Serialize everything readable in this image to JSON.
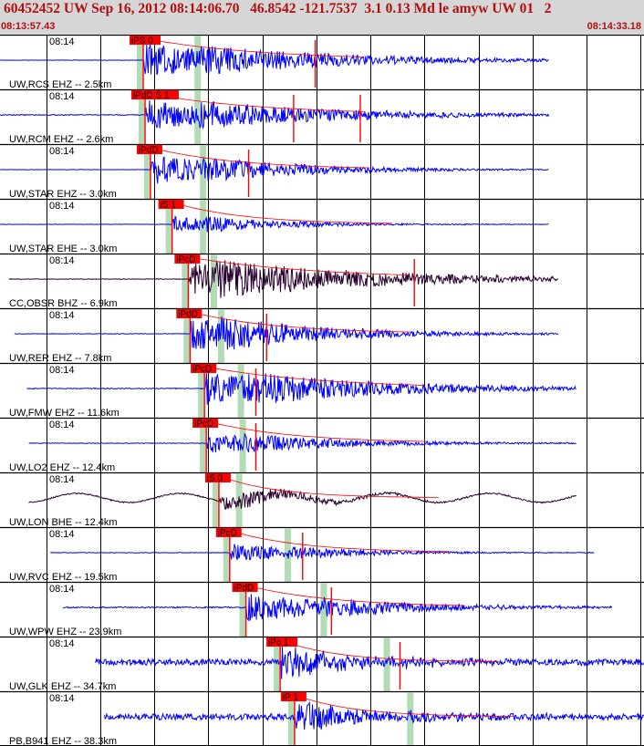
{
  "header": {
    "title": "60452452 UW Sep 16, 2012 08:14:06.70   46.8542 -121.7537  3.1 0.13 Md le amyw UW 01   2",
    "start_time": "08:13:57.43",
    "end_time": "08:14:33.18"
  },
  "tick_label": "08:14",
  "colors": {
    "trace_blue": "#0000ff",
    "trace_dark": "#2a0030",
    "pick_red": "#ff0000",
    "coda_dark": "#ff0000",
    "window_green": "#b4dcb4"
  },
  "traces": [
    {
      "label": "UW,RCS EHZ -- 2.5km",
      "pick": "iPS 0",
      "color": "blue",
      "amp": 1.0,
      "noise": 0.03,
      "onset_s": 8.0,
      "s_s": 11.0,
      "coda": 8,
      "tail_s": 30.5,
      "start_s": 0.0,
      "spikes": [
        17.5
      ]
    },
    {
      "label": "UW,RCM EHZ -- 2.6km",
      "pick": "iPdD S 1",
      "color": "blue",
      "amp": 0.9,
      "noise": 0.08,
      "onset_s": 8.1,
      "s_s": 11.0,
      "coda": 8,
      "tail_s": 30.5,
      "start_s": 0.0,
      "spikes": [
        16.3,
        20.0
      ]
    },
    {
      "label": "UW,STAR EHZ -- 3.0km",
      "pick": "iPdD",
      "color": "blue",
      "amp": 0.9,
      "noise": 0.03,
      "onset_s": 8.4,
      "s_s": 11.3,
      "coda": 6,
      "tail_s": 30.5,
      "start_s": 0.0,
      "spikes": [
        13.8
      ]
    },
    {
      "label": "UW,STAR EHE -- 3.0km",
      "pick": "iS 1",
      "color": "blue",
      "amp": 0.5,
      "noise": 0.03,
      "onset_s": 9.6,
      "s_s": 11.3,
      "coda": 5,
      "tail_s": 30.5,
      "start_s": 0.0,
      "spikes": []
    },
    {
      "label": "CC,OBSR BHZ -- 6.9km",
      "pick": "iPcD",
      "color": "dark",
      "amp": 1.0,
      "noise": 0.05,
      "onset_s": 10.5,
      "s_s": 11.9,
      "coda": 9,
      "tail_s": 31.0,
      "start_s": 0.5,
      "spikes": [
        23.0
      ]
    },
    {
      "label": "UW,RER EHZ -- 7.8km",
      "pick": "iPdD",
      "color": "blue",
      "amp": 1.0,
      "noise": 0.05,
      "onset_s": 10.6,
      "s_s": 12.3,
      "coda": 6,
      "tail_s": 31.0,
      "start_s": 0.8,
      "spikes": [
        14.8
      ]
    },
    {
      "label": "UW,FMW EHZ -- 11.6km",
      "pick": "iPcD",
      "color": "blue",
      "amp": 1.0,
      "noise": 0.08,
      "onset_s": 11.4,
      "s_s": 13.4,
      "coda": 8,
      "tail_s": 32.0,
      "start_s": 1.5,
      "spikes": [
        14.2
      ]
    },
    {
      "label": "UW,LO2 EHZ -- 12.4km",
      "pick": "iPcD",
      "color": "blue",
      "amp": 0.6,
      "noise": 0.05,
      "onset_s": 11.5,
      "s_s": 13.5,
      "coda": 6,
      "tail_s": 32.0,
      "start_s": 1.6,
      "spikes": [
        14.2
      ]
    },
    {
      "label": "UW,LON BHE -- 12.4km",
      "pick": "iS 0",
      "color": "dark",
      "amp": 0.5,
      "noise": 0.12,
      "onset_s": 12.2,
      "s_s": 13.3,
      "coda": 4,
      "tail_s": 32.0,
      "start_s": 1.6,
      "spikes": [],
      "swell": true
    },
    {
      "label": "UW,RVC EHZ -- 19.5km",
      "pick": "iPcD",
      "color": "blue",
      "amp": 0.55,
      "noise": 0.05,
      "onset_s": 12.8,
      "s_s": 16.0,
      "coda": 5,
      "tail_s": 33.0,
      "start_s": 2.8,
      "spikes": [
        16.8
      ]
    },
    {
      "label": "UW,WPW EHZ -- 23.9km",
      "pick": "iPdD",
      "color": "blue",
      "amp": 0.9,
      "noise": 0.12,
      "onset_s": 13.7,
      "s_s": 18.0,
      "coda": 6,
      "tail_s": 34.0,
      "start_s": 3.5,
      "spikes": [
        18.4
      ]
    },
    {
      "label": "UW,GLK EHZ -- 34.7km",
      "pick": "iPc 1",
      "color": "blue",
      "amp": 1.0,
      "noise": 0.55,
      "onset_s": 15.6,
      "s_s": 21.5,
      "coda": 4,
      "tail_s": 36.0,
      "start_s": 5.3,
      "spikes": [
        22.2
      ]
    },
    {
      "label": "PB,B941 EHZ -- 38.3km",
      "pick": "iP 1",
      "color": "blue",
      "amp": 1.0,
      "noise": 0.55,
      "onset_s": 16.4,
      "s_s": 22.8,
      "coda": 4,
      "tail_s": 36.0,
      "start_s": 5.8,
      "spikes": []
    }
  ]
}
